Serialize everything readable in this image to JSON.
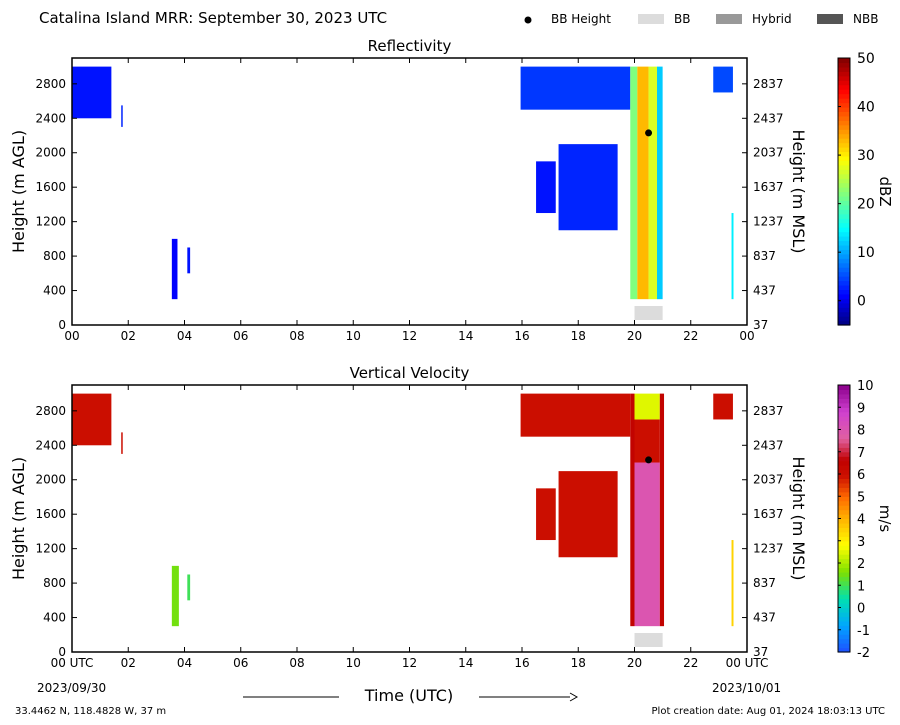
{
  "header": {
    "title": "Catalina Island MRR:  September 30, 2023 UTC"
  },
  "legend": {
    "items": [
      {
        "label": "BB Height",
        "kind": "dot",
        "color": "#000000"
      },
      {
        "label": "BB",
        "kind": "swatch",
        "color": "#dcdcdc"
      },
      {
        "label": "Hybrid",
        "kind": "swatch",
        "color": "#999999"
      },
      {
        "label": "NBB",
        "kind": "swatch",
        "color": "#555555"
      }
    ]
  },
  "footer": {
    "location": "33.4462 N, 118.4828 W, 37 m",
    "creation": "Plot creation date: Aug 01, 2024 18:03:13 UTC",
    "start_date": "2023/09/30",
    "end_date": "2023/10/01",
    "time_label": "Time (UTC)"
  },
  "chart_data": [
    {
      "type": "heatmap",
      "title": "Reflectivity",
      "xlabel": "",
      "ylabel": "Height (m AGL)",
      "ylabel_right": "Height (m MSL)",
      "xlim": [
        0,
        24
      ],
      "ylim": [
        0,
        3100
      ],
      "x_ticks": [
        "00",
        "02",
        "04",
        "06",
        "08",
        "10",
        "12",
        "14",
        "16",
        "18",
        "20",
        "22",
        "00"
      ],
      "y_ticks": [
        0,
        400,
        800,
        1200,
        1600,
        2000,
        2400,
        2800
      ],
      "y_ticks_right": [
        "37",
        "437",
        "837",
        "1237",
        "1637",
        "2037",
        "2437",
        "2837"
      ],
      "colorbar": {
        "label": "dBZ",
        "range": [
          -5,
          50
        ],
        "ticks": [
          "0",
          "10",
          "20",
          "30",
          "40",
          "50"
        ],
        "tick_values": [
          0,
          10,
          20,
          30,
          40,
          50
        ]
      },
      "bb_height": [
        {
          "x": 20.5,
          "y": 2230
        }
      ],
      "bb_bar": {
        "x0": 20.0,
        "x1": 21.0,
        "label": "BB"
      },
      "regions": [
        {
          "x0": 0.0,
          "x1": 1.4,
          "y0": 2400,
          "y1": 3000,
          "value": 2
        },
        {
          "x0": 1.75,
          "x1": 1.8,
          "y0": 2300,
          "y1": 2550,
          "value": 3
        },
        {
          "x0": 3.55,
          "x1": 3.75,
          "y0": 300,
          "y1": 1000,
          "value": 1
        },
        {
          "x0": 4.1,
          "x1": 4.2,
          "y0": 600,
          "y1": 900,
          "value": 2
        },
        {
          "x0": 15.95,
          "x1": 19.85,
          "y0": 2500,
          "y1": 3000,
          "value": 4
        },
        {
          "x0": 16.5,
          "x1": 17.2,
          "y0": 1300,
          "y1": 1900,
          "value": 2
        },
        {
          "x0": 17.3,
          "x1": 19.4,
          "y0": 1100,
          "y1": 2100,
          "value": 3
        },
        {
          "x0": 19.85,
          "x1": 20.1,
          "y0": 300,
          "y1": 3000,
          "value": 22
        },
        {
          "x0": 20.1,
          "x1": 20.5,
          "y0": 300,
          "y1": 3000,
          "value": 33
        },
        {
          "x0": 20.5,
          "x1": 20.8,
          "y0": 300,
          "y1": 3000,
          "value": 27
        },
        {
          "x0": 20.8,
          "x1": 21.0,
          "y0": 300,
          "y1": 3000,
          "value": 12
        },
        {
          "x0": 22.8,
          "x1": 23.5,
          "y0": 2700,
          "y1": 3000,
          "value": 5
        },
        {
          "x0": 23.45,
          "x1": 23.52,
          "y0": 300,
          "y1": 1300,
          "value": 14
        }
      ]
    },
    {
      "type": "heatmap",
      "title": "Vertical Velocity",
      "xlabel": "Time (UTC)",
      "ylabel": "Height (m AGL)",
      "ylabel_right": "Height (m MSL)",
      "xlim": [
        0,
        24
      ],
      "ylim": [
        0,
        3100
      ],
      "x_ticks": [
        "00 UTC",
        "02",
        "04",
        "06",
        "08",
        "10",
        "12",
        "14",
        "16",
        "18",
        "20",
        "22",
        "00 UTC"
      ],
      "y_ticks": [
        0,
        400,
        800,
        1200,
        1600,
        2000,
        2400,
        2800
      ],
      "y_ticks_right": [
        "37",
        "437",
        "837",
        "1237",
        "1637",
        "2037",
        "2437",
        "2837"
      ],
      "colorbar": {
        "label": "m/s",
        "range": [
          -2,
          10
        ],
        "ticks": [
          "-2",
          "-1",
          "0",
          "1",
          "2",
          "3",
          "4",
          "5",
          "6",
          "7",
          "8",
          "9",
          "10"
        ],
        "tick_values": [
          -2,
          -1,
          0,
          1,
          2,
          3,
          4,
          5,
          6,
          7,
          8,
          9,
          10
        ]
      },
      "bb_height": [
        {
          "x": 20.5,
          "y": 2230
        }
      ],
      "bb_bar": {
        "x0": 20.0,
        "x1": 21.0,
        "label": "BB"
      },
      "regions": [
        {
          "x0": 0.0,
          "x1": 1.4,
          "y0": 2400,
          "y1": 3000,
          "value": 6
        },
        {
          "x0": 1.75,
          "x1": 1.8,
          "y0": 2300,
          "y1": 2550,
          "value": 6
        },
        {
          "x0": 3.55,
          "x1": 3.8,
          "y0": 300,
          "y1": 1000,
          "value": 1.5
        },
        {
          "x0": 4.1,
          "x1": 4.2,
          "y0": 600,
          "y1": 900,
          "value": 1
        },
        {
          "x0": 15.95,
          "x1": 19.85,
          "y0": 2500,
          "y1": 3000,
          "value": 6
        },
        {
          "x0": 16.5,
          "x1": 17.2,
          "y0": 1300,
          "y1": 1900,
          "value": 6
        },
        {
          "x0": 17.3,
          "x1": 19.4,
          "y0": 1100,
          "y1": 2100,
          "value": 6
        },
        {
          "x0": 19.85,
          "x1": 20.0,
          "y0": 300,
          "y1": 3000,
          "value": 6.5
        },
        {
          "x0": 20.0,
          "x1": 20.9,
          "y0": 300,
          "y1": 2200,
          "value": 8
        },
        {
          "x0": 20.0,
          "x1": 20.9,
          "y0": 2200,
          "y1": 2700,
          "value": 6
        },
        {
          "x0": 20.0,
          "x1": 20.9,
          "y0": 2700,
          "y1": 3000,
          "value": 2.5
        },
        {
          "x0": 20.9,
          "x1": 21.05,
          "y0": 300,
          "y1": 3000,
          "value": 6.5
        },
        {
          "x0": 22.8,
          "x1": 23.5,
          "y0": 2700,
          "y1": 3000,
          "value": 6
        },
        {
          "x0": 23.45,
          "x1": 23.52,
          "y0": 300,
          "y1": 1300,
          "value": 3.5
        }
      ]
    }
  ]
}
